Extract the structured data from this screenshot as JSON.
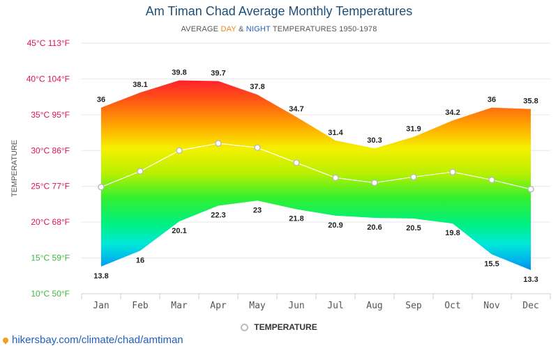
{
  "chart_data": {
    "type": "area",
    "title": "Am Timan Chad Average Monthly Temperatures",
    "subtitle": {
      "prefix": "AVERAGE ",
      "day": "DAY",
      "middle": " & ",
      "night": "NIGHT",
      "suffix": " TEMPERATURES 1950-1978"
    },
    "ylabel": "TEMPERATURE",
    "categories": [
      "Jan",
      "Feb",
      "Mar",
      "Apr",
      "May",
      "Jun",
      "Jul",
      "Aug",
      "Sep",
      "Oct",
      "Nov",
      "Dec"
    ],
    "series": [
      {
        "name": "DAY",
        "values": [
          36,
          38.1,
          39.8,
          39.7,
          37.8,
          34.7,
          31.4,
          30.3,
          31.9,
          34.2,
          36,
          35.8
        ]
      },
      {
        "name": "NIGHT",
        "values": [
          13.8,
          16,
          20.1,
          22.3,
          23,
          21.8,
          20.9,
          20.6,
          20.5,
          19.8,
          15.5,
          13.3
        ]
      },
      {
        "name": "TEMPERATURE",
        "values": [
          24.9,
          27.1,
          30,
          31,
          30.4,
          28.3,
          26.2,
          25.5,
          26.3,
          27,
          25.9,
          24.6
        ]
      }
    ],
    "yticks": [
      {
        "value": 45,
        "label": "45°C 113°F",
        "color": "#e0105a"
      },
      {
        "value": 40,
        "label": "40°C 104°F",
        "color": "#e0105a"
      },
      {
        "value": 35,
        "label": "35°C 95°F",
        "color": "#e0105a"
      },
      {
        "value": 30,
        "label": "30°C 86°F",
        "color": "#e0105a"
      },
      {
        "value": 25,
        "label": "25°C 77°F",
        "color": "#e0105a"
      },
      {
        "value": 20,
        "label": "20°C 68°F",
        "color": "#e0105a"
      },
      {
        "value": 15,
        "label": "15°C 59°F",
        "color": "#3cb83c"
      },
      {
        "value": 10,
        "label": "10°C 50°F",
        "color": "#3cb83c"
      }
    ],
    "ylim": [
      10,
      45
    ],
    "grid": true,
    "legend": "bottom-center"
  },
  "legend": {
    "label": "TEMPERATURE"
  },
  "source": {
    "text": "hikersbay.com/climate/chad/amtiman"
  },
  "colors": {
    "title": "#1f4e79",
    "day_accent": "#e88a17",
    "night_accent": "#1f5fbf",
    "avg_line": "#ffffff",
    "marker_stroke": "#bbbbbb"
  }
}
